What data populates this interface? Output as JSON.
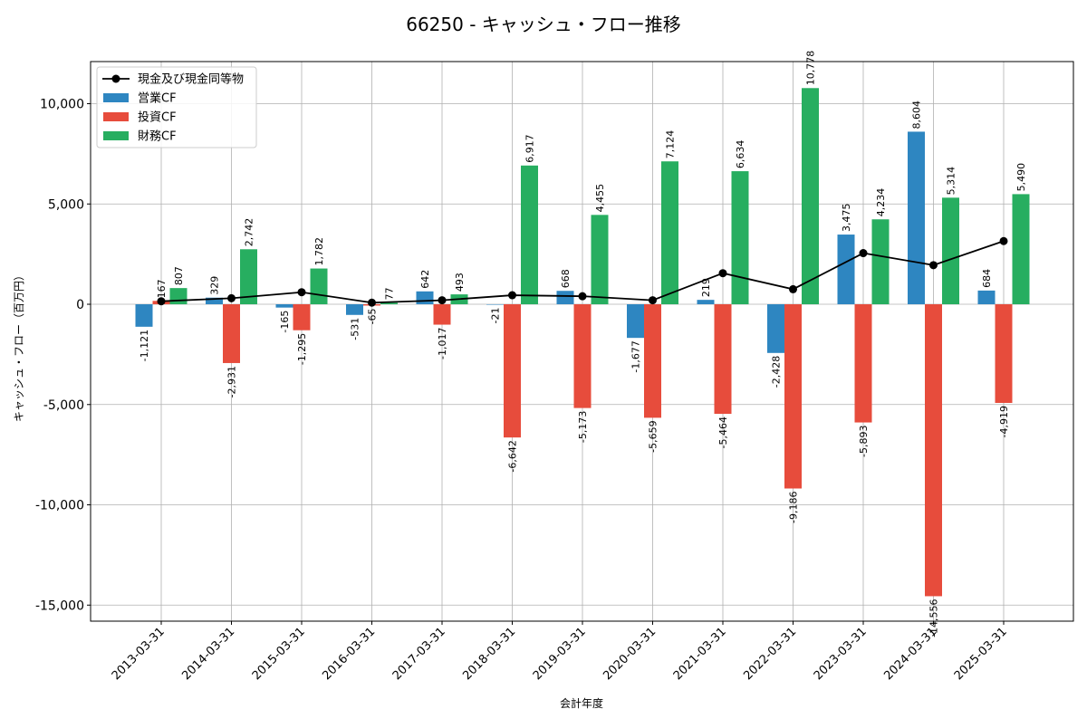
{
  "chart_data": {
    "type": "bar",
    "title": "66250 - キャッシュ・フロー推移",
    "xlabel": "会計年度",
    "ylabel": "キャッシュ・フロー（百万円）",
    "ylim": [
      -15800,
      12100
    ],
    "yticks": [
      10000,
      5000,
      0,
      -5000,
      -10000,
      -15000
    ],
    "ytick_labels": [
      "10,000",
      "5,000",
      "0",
      "-5,000",
      "-10,000",
      "-15,000"
    ],
    "grid": true,
    "legend_position": "top-left",
    "categories": [
      "2013-03-31",
      "2014-03-31",
      "2015-03-31",
      "2016-03-31",
      "2017-03-31",
      "2018-03-31",
      "2019-03-31",
      "2020-03-31",
      "2021-03-31",
      "2022-03-31",
      "2023-03-31",
      "2024-03-31",
      "2025-03-31"
    ],
    "series": [
      {
        "name": "営業CF",
        "kind": "bar",
        "color": "#2e86c1",
        "values": [
          -1121,
          329,
          -165,
          -531,
          642,
          -21,
          668,
          -1677,
          219,
          -2428,
          3475,
          8604,
          684
        ],
        "labels": [
          "-1,121",
          "329",
          "-165",
          "-531",
          "642",
          "-21",
          "668",
          "-1,677",
          "219",
          "-2,428",
          "3,475",
          "8,604",
          "684"
        ]
      },
      {
        "name": "投資CF",
        "kind": "bar",
        "color": "#e74c3c",
        "values": [
          167,
          -2931,
          -1295,
          -65,
          -1017,
          -6642,
          -5173,
          -5659,
          -5464,
          -9186,
          -5893,
          -14556,
          -4919
        ],
        "labels": [
          "167",
          "-2,931",
          "-1,295",
          "-65",
          "-1,017",
          "-6,642",
          "-5,173",
          "-5,659",
          "-5,464",
          "-9,186",
          "-5,893",
          "-14,556",
          "-4,919"
        ]
      },
      {
        "name": "財務CF",
        "kind": "bar",
        "color": "#27ae60",
        "values": [
          807,
          2742,
          1782,
          77,
          493,
          6917,
          4455,
          7124,
          6634,
          10778,
          4234,
          5314,
          5490
        ],
        "labels": [
          "807",
          "2,742",
          "1,782",
          "77",
          "493",
          "6,917",
          "4,455",
          "7,124",
          "6,634",
          "10,778",
          "4,234",
          "5,314",
          "5,490"
        ]
      },
      {
        "name": "現金及び現金同等物",
        "kind": "line",
        "color": "#000000",
        "values": [
          150,
          300,
          600,
          80,
          200,
          450,
          400,
          200,
          1550,
          750,
          2550,
          1950,
          3150
        ]
      }
    ]
  }
}
